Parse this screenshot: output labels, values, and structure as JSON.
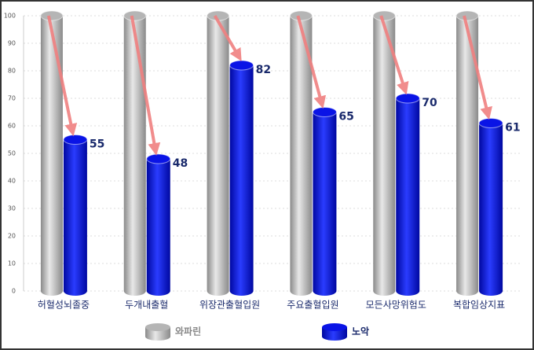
{
  "chart_data": {
    "type": "bar",
    "categories": [
      "허혈성뇌졸중",
      "두개내출혈",
      "위장관출혈입원",
      "주요출혈입원",
      "모든사망위험도",
      "복합임상지표"
    ],
    "series": [
      {
        "name": "와파린",
        "color": "#b5b5b5",
        "values": [
          100,
          100,
          100,
          100,
          100,
          100
        ]
      },
      {
        "name": "노악",
        "color": "#0a14e6",
        "values": [
          55,
          48,
          82,
          65,
          70,
          61
        ]
      }
    ],
    "ylim": [
      0,
      100
    ],
    "yticks": [
      0,
      10,
      20,
      30,
      40,
      50,
      60,
      70,
      80,
      90,
      100
    ],
    "grid": true
  }
}
